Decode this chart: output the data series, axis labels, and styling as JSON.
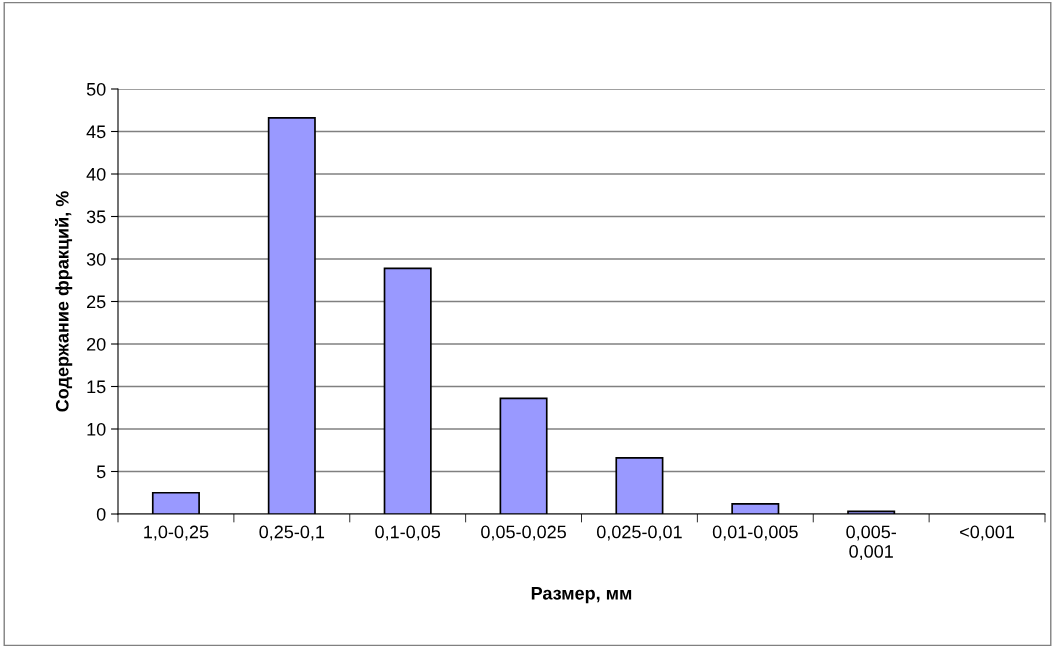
{
  "chart_data": {
    "type": "bar",
    "xlabel": "Размер, мм",
    "ylabel": "Содержание фракций, %",
    "categories": [
      "1,0-0,25",
      "0,25-0,1",
      "0,1-0,05",
      "0,05-0,025",
      "0,025-0,01",
      "0,01-0,005",
      "0,005-\n0,001",
      "<0,001"
    ],
    "values": [
      2.5,
      46.6,
      28.9,
      13.6,
      6.6,
      1.2,
      0.3,
      0
    ],
    "color": "#9999ff",
    "ylim": [
      0,
      50
    ],
    "yticks": [
      0,
      5,
      10,
      15,
      20,
      25,
      30,
      35,
      40,
      45,
      50
    ],
    "grid": "y"
  }
}
